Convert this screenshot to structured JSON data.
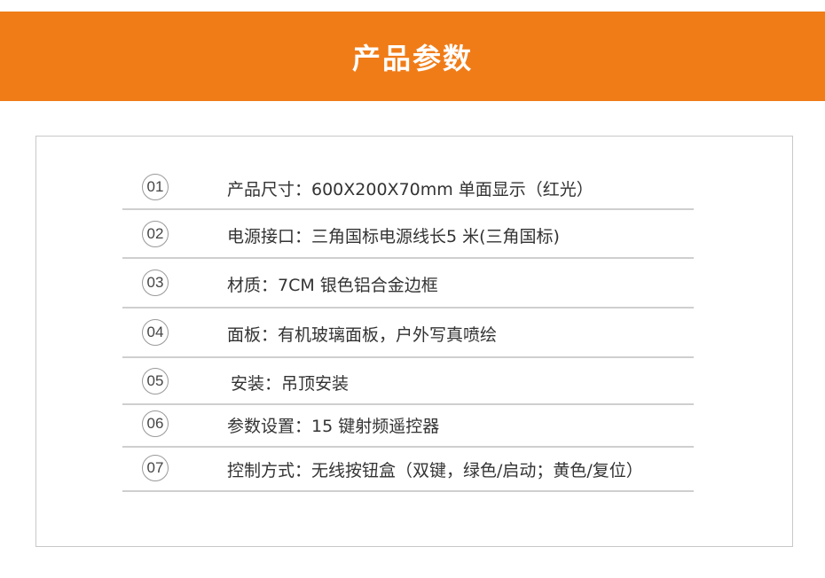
{
  "header": {
    "title": "产品参数",
    "color": "#f07c18"
  },
  "params": [
    {
      "num": "01",
      "text": "产品尺寸：600X200X70mm 单面显示（红光）"
    },
    {
      "num": "02",
      "text": "电源接口：三角国标电源线长5 米(三角国标)"
    },
    {
      "num": "03",
      "text": "材质：7CM 银色铝合金边框"
    },
    {
      "num": "04",
      "text": "面板：有机玻璃面板，户外写真喷绘"
    },
    {
      "num": "05",
      "text": "安装：吊顶安装"
    },
    {
      "num": "06",
      "text": "参数设置：15 键射频遥控器"
    },
    {
      "num": "07",
      "text": "控制方式：无线按钮盒（双键，绿色/启动；黄色/复位）"
    }
  ]
}
